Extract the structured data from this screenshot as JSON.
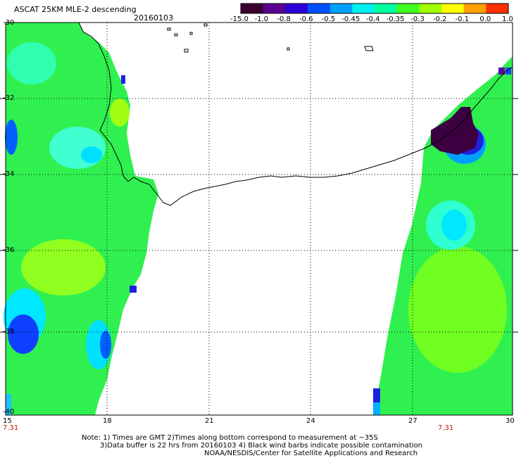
{
  "header": {
    "title": "ASCAT 25KM MLE-2 descending",
    "date": "20160103"
  },
  "colorbar": {
    "labels": [
      "-15.0",
      "-1.0",
      "-0.8",
      "-0.6",
      "-0.5",
      "-0.45",
      "-0.4",
      "-0.35",
      "-0.3",
      "-0.2",
      "-0.1",
      "0.0",
      "1.0"
    ],
    "colors": [
      "#3a0030",
      "#5a0090",
      "#2a00d8",
      "#0050ff",
      "#00a0ff",
      "#00f0f0",
      "#00ffa0",
      "#40ff20",
      "#a0ff00",
      "#ffff00",
      "#ffa000",
      "#ff3000"
    ]
  },
  "axes": {
    "lat_labels": [
      "-30",
      "-32",
      "-34",
      "-36",
      "-38",
      "-40"
    ],
    "lon_labels": [
      "15",
      "18",
      "21",
      "24",
      "27",
      "30"
    ],
    "time_left": "7.31",
    "time_right": "7.31"
  },
  "notes": {
    "line1": "Note: 1) Times are GMT 2)Times along bottom correspond to measurement at ~35S",
    "line2": "3)Data buffer is 22 hrs from 20160103 4) Black wind barbs indicate possible contamination",
    "line3": "NOAA/NESDIS/Center for Satellite Applications and Research"
  }
}
